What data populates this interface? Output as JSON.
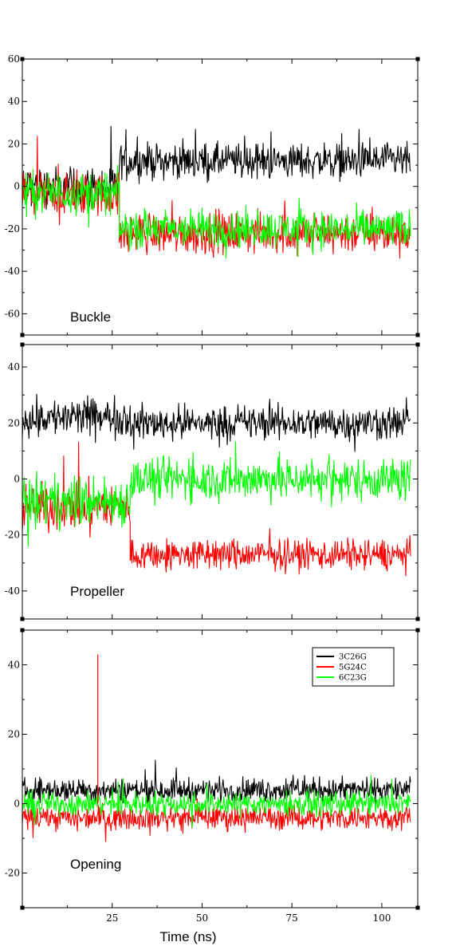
{
  "chart_data": [
    {
      "type": "line",
      "panel_label": "Buckle",
      "xlim": [
        0,
        110
      ],
      "ylim": [
        -70,
        60
      ],
      "yticks": [
        -60,
        -40,
        -20,
        0,
        20,
        40,
        60
      ],
      "xticks": [
        25,
        50,
        75,
        100
      ],
      "xticklabels_shown": false,
      "series": [
        {
          "name": "3C26G",
          "color": "#000000",
          "segments": [
            {
              "x": [
                0,
                27
              ],
              "mean": 0,
              "noise": 14
            },
            {
              "x": [
                27,
                108
              ],
              "mean": 12,
              "noise": 12
            }
          ]
        },
        {
          "name": "5G24C",
          "color": "#ff0000",
          "segments": [
            {
              "x": [
                0,
                27
              ],
              "mean": -4,
              "noise": 15
            },
            {
              "x": [
                27,
                108
              ],
              "mean": -22,
              "noise": 14
            }
          ]
        },
        {
          "name": "6C23G",
          "color": "#00ff00",
          "segments": [
            {
              "x": [
                0,
                27
              ],
              "mean": -3,
              "noise": 14
            },
            {
              "x": [
                27,
                108
              ],
              "mean": -20,
              "noise": 13
            }
          ]
        }
      ]
    },
    {
      "type": "line",
      "panel_label": "Propeller",
      "xlim": [
        0,
        110
      ],
      "ylim": [
        -50,
        48
      ],
      "yticks": [
        -40,
        -20,
        0,
        20,
        40
      ],
      "xticks": [
        25,
        50,
        75,
        100
      ],
      "xticklabels_shown": false,
      "series": [
        {
          "name": "3C26G",
          "color": "#000000",
          "segments": [
            {
              "x": [
                0,
                30
              ],
              "mean": 22,
              "noise": 10
            },
            {
              "x": [
                30,
                108
              ],
              "mean": 20,
              "noise": 9
            }
          ]
        },
        {
          "name": "5G24C",
          "color": "#ff0000",
          "segments": [
            {
              "x": [
                0,
                30
              ],
              "mean": -10,
              "noise": 12
            },
            {
              "x": [
                30,
                108
              ],
              "mean": -27,
              "noise": 8
            }
          ]
        },
        {
          "name": "6C23G",
          "color": "#00ff00",
          "segments": [
            {
              "x": [
                0,
                30
              ],
              "mean": -8,
              "noise": 13
            },
            {
              "x": [
                30,
                108
              ],
              "mean": 0,
              "noise": 11
            }
          ]
        }
      ]
    },
    {
      "type": "line",
      "panel_label": "Opening",
      "xlim": [
        0,
        110
      ],
      "ylim": [
        -30,
        50
      ],
      "yticks": [
        -20,
        0,
        20,
        40
      ],
      "xticks": [
        25,
        50,
        75,
        100
      ],
      "xticklabels": [
        "25",
        "50",
        "75",
        "100"
      ],
      "xticklabels_shown": true,
      "xlabel": "Time (ns)",
      "legend": {
        "placement": "top-right",
        "entries": [
          "3C26G",
          "5G24C",
          "6C23G"
        ]
      },
      "series": [
        {
          "name": "3C26G",
          "color": "#000000",
          "segments": [
            {
              "x": [
                0,
                108
              ],
              "mean": 4,
              "noise": 5
            }
          ]
        },
        {
          "name": "5G24C",
          "color": "#ff0000",
          "segments": [
            {
              "x": [
                0,
                108
              ],
              "mean": -4,
              "noise": 5
            }
          ]
        },
        {
          "name": "6C23G",
          "color": "#00ff00",
          "segments": [
            {
              "x": [
                0,
                108
              ],
              "mean": 0,
              "noise": 5
            }
          ]
        }
      ],
      "spikes": [
        {
          "x": 21,
          "y": 43,
          "color": "#ff0000"
        }
      ]
    }
  ]
}
